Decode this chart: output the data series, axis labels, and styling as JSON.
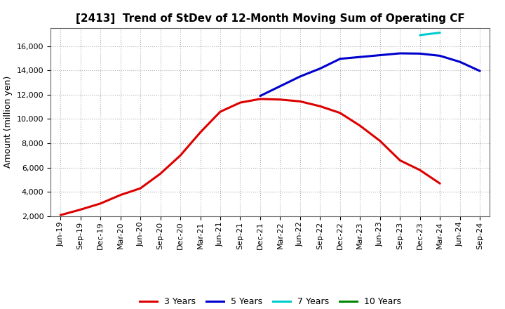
{
  "title": "[2413]  Trend of StDev of 12-Month Moving Sum of Operating CF",
  "ylabel": "Amount (million yen)",
  "background_color": "#ffffff",
  "grid_color": "#b0b0b0",
  "title_fontsize": 11,
  "axis_fontsize": 9,
  "tick_fontsize": 8,
  "x_labels": [
    "Jun-19",
    "Sep-19",
    "Dec-19",
    "Mar-20",
    "Jun-20",
    "Sep-20",
    "Dec-20",
    "Mar-21",
    "Jun-21",
    "Sep-21",
    "Dec-21",
    "Mar-22",
    "Jun-22",
    "Sep-22",
    "Dec-22",
    "Mar-23",
    "Jun-23",
    "Sep-23",
    "Dec-23",
    "Mar-24",
    "Jun-24",
    "Sep-24"
  ],
  "series_3y": {
    "color": "#dd0000",
    "label": "3 Years",
    "values": [
      2100,
      2550,
      3050,
      3750,
      4300,
      5500,
      7000,
      8900,
      10600,
      11350,
      11650,
      11600,
      11450,
      11050,
      10500,
      9450,
      8200,
      6600,
      5800,
      4700,
      null,
      null
    ]
  },
  "series_5y": {
    "color": "#0000cc",
    "label": "5 Years",
    "values": [
      null,
      null,
      null,
      null,
      null,
      null,
      null,
      null,
      null,
      null,
      11900,
      12700,
      13500,
      14150,
      14950,
      15100,
      15250,
      15400,
      15380,
      15200,
      14700,
      13950
    ]
  },
  "series_7y": {
    "color": "#00cccc",
    "label": "7 Years",
    "values": [
      null,
      null,
      null,
      null,
      null,
      null,
      null,
      null,
      null,
      null,
      null,
      null,
      null,
      null,
      null,
      null,
      null,
      null,
      16900,
      17100,
      null,
      null
    ]
  },
  "series_10y": {
    "color": "#008800",
    "label": "10 Years",
    "values": [
      null,
      null,
      null,
      null,
      null,
      null,
      null,
      null,
      null,
      null,
      null,
      null,
      null,
      null,
      null,
      null,
      null,
      null,
      null,
      null,
      null,
      null
    ]
  },
  "ylim": [
    2000,
    17500
  ],
  "yticks": [
    2000,
    4000,
    6000,
    8000,
    10000,
    12000,
    14000,
    16000
  ],
  "linewidth": 2.2
}
